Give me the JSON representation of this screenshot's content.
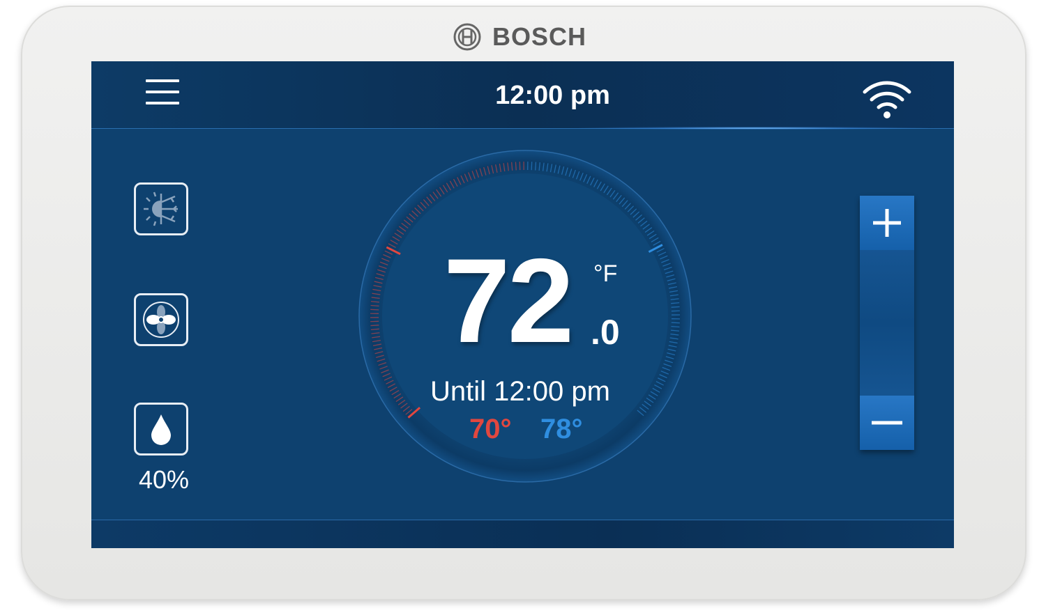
{
  "device": {
    "brand": "BOSCH"
  },
  "header": {
    "time": "12:00 pm",
    "menu_icon": "hamburger-menu-icon",
    "wifi_icon": "wifi-icon"
  },
  "sidebar": {
    "mode_icon": "heat-cool-mode-icon",
    "fan_icon": "fan-icon",
    "humidity_icon": "water-drop-icon",
    "humidity": "40%"
  },
  "thermostat": {
    "temperature": "72",
    "decimal": ".0",
    "unit": "°F",
    "hold_text": "Until 12:00 pm",
    "heat_setpoint": "70°",
    "cool_setpoint": "78°",
    "heat_color": "#e2473f",
    "cool_color": "#2f8ee0"
  },
  "controls": {
    "increase_label": "+",
    "decrease_label": "−"
  }
}
